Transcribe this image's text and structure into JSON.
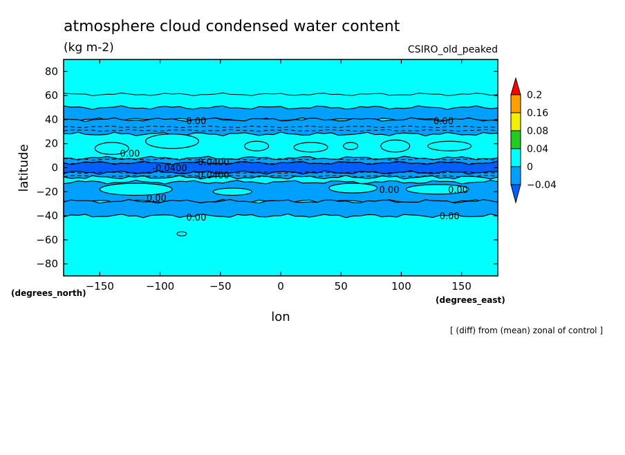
{
  "chart_data": {
    "type": "heatmap",
    "title": "atmosphere cloud condensed water content",
    "units": "(kg m-2)",
    "model": "CSIRO_old_peaked",
    "xlabel": "lon",
    "ylabel": "latitude",
    "x_unit_label": "(degrees_east)",
    "y_unit_label": "(degrees_north)",
    "note": "[ (diff) from (mean) zonal of control ]",
    "xlim": [
      -180,
      180
    ],
    "ylim": [
      -90,
      90
    ],
    "x_ticks": [
      -150,
      -100,
      -50,
      0,
      50,
      100,
      150
    ],
    "y_ticks": [
      80,
      60,
      40,
      20,
      0,
      -20,
      -40,
      -60,
      -80
    ],
    "grid": false,
    "colorbar": {
      "levels": [
        "0.2",
        "0.16",
        "0.08",
        "0.04",
        "0",
        "-0.04"
      ],
      "colors": [
        "#ff0000",
        "#ffa000",
        "#f0f000",
        "#22cc22",
        "#00ffff",
        "#00a0ff",
        "#0060ff"
      ]
    },
    "contour_labels": [
      {
        "text": "0.00",
        "lon": -70,
        "lat": 39
      },
      {
        "text": "0.00",
        "lon": 135,
        "lat": 39
      },
      {
        "text": "0.00",
        "lon": -125,
        "lat": 12
      },
      {
        "text": "-0.0400",
        "lon": -57,
        "lat": 5
      },
      {
        "text": "-0.0400",
        "lon": -92,
        "lat": 0
      },
      {
        "text": "-0.0400",
        "lon": -57,
        "lat": -6
      },
      {
        "text": "0.00",
        "lon": 90,
        "lat": -18
      },
      {
        "text": "0.00",
        "lon": 147,
        "lat": -18
      },
      {
        "text": "0.00",
        "lon": -103,
        "lat": -25
      },
      {
        "text": "0.00",
        "lon": -70,
        "lat": -41
      },
      {
        "text": "0.00",
        "lon": 140,
        "lat": -40
      }
    ],
    "bands": [
      {
        "lat_top": 50,
        "lat_bot": 40,
        "value_color": "#00a0ff"
      },
      {
        "lat_top": 40,
        "lat_bot": 28,
        "value_color": "#00a0ff"
      },
      {
        "lat_top": 8,
        "lat_bot": -8,
        "value_color": "#00a0ff"
      },
      {
        "lat_top": 4,
        "lat_bot": -4,
        "value_color": "#0060ff"
      },
      {
        "lat_top": -12,
        "lat_bot": -28,
        "value_color": "#00a0ff"
      },
      {
        "lat_top": -28,
        "lat_bot": -40,
        "value_color": "#00a0ff"
      }
    ]
  }
}
